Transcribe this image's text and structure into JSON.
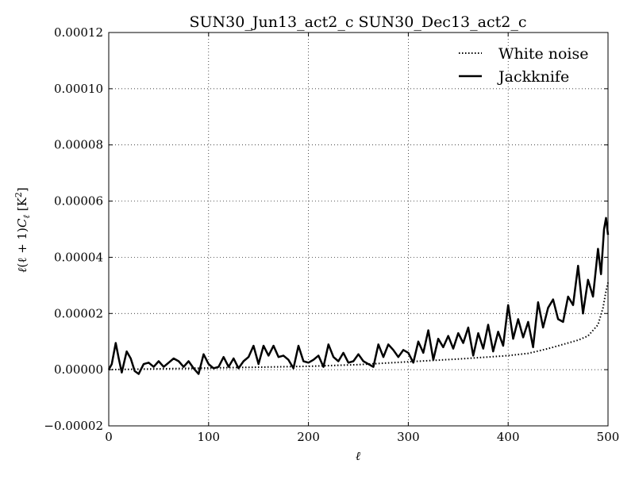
{
  "chart_data": {
    "type": "line",
    "title": "SUN30_Jun13_act2_c SUN30_Dec13_act2_c",
    "xlabel": "ℓ",
    "ylabel_parts": {
      "l": "ℓ",
      "mid": "(ℓ + 1)",
      "C": "C",
      "sub": "ℓ",
      "unit_open": "  [K",
      "sup": "2",
      "unit_close": "]"
    },
    "xlim": [
      0,
      500
    ],
    "ylim": [
      -2e-05,
      0.00012
    ],
    "grid": true,
    "grid_style": "dotted",
    "legend_position": "top-right",
    "x_ticks": [
      0,
      100,
      200,
      300,
      400,
      500
    ],
    "x_tick_labels": [
      "0",
      "100",
      "200",
      "300",
      "400",
      "500"
    ],
    "y_ticks": [
      -2e-05,
      0,
      2e-05,
      4e-05,
      6e-05,
      8e-05,
      0.0001,
      0.00012
    ],
    "y_tick_labels": [
      "−0.00002",
      "0.00000",
      "0.00002",
      "0.00004",
      "0.00006",
      "0.00008",
      "0.00010",
      "0.00012"
    ],
    "series": [
      {
        "name": "White noise",
        "style": "dotted",
        "color": "#000000",
        "x": [
          0,
          50,
          100,
          150,
          200,
          250,
          300,
          350,
          380,
          400,
          420,
          440,
          460,
          470,
          480,
          490,
          495,
          498,
          500
        ],
        "y": [
          0.0,
          3e-07,
          6e-07,
          9e-07,
          1.2e-06,
          1.8e-06,
          2.8e-06,
          3.8e-06,
          4.5e-06,
          5e-06,
          5.8e-06,
          7.5e-06,
          9.5e-06,
          1.05e-05,
          1.2e-05,
          1.6e-05,
          2.2e-05,
          2.8e-05,
          3.1e-05
        ]
      },
      {
        "name": "Jackknife",
        "style": "solid",
        "color": "#000000",
        "x": [
          0,
          3,
          7,
          10,
          13,
          18,
          22,
          26,
          30,
          35,
          40,
          45,
          50,
          55,
          60,
          65,
          70,
          75,
          80,
          85,
          90,
          95,
          100,
          105,
          110,
          115,
          120,
          125,
          130,
          135,
          140,
          145,
          150,
          155,
          160,
          165,
          170,
          175,
          180,
          185,
          190,
          195,
          200,
          205,
          210,
          215,
          220,
          225,
          230,
          235,
          240,
          245,
          250,
          255,
          260,
          265,
          270,
          275,
          280,
          285,
          290,
          295,
          300,
          305,
          310,
          315,
          320,
          325,
          330,
          335,
          340,
          345,
          350,
          355,
          360,
          365,
          370,
          375,
          380,
          385,
          390,
          395,
          400,
          405,
          410,
          415,
          420,
          425,
          430,
          435,
          440,
          445,
          450,
          455,
          460,
          465,
          470,
          475,
          480,
          485,
          490,
          493,
          496,
          498,
          500
        ],
        "y": [
          0.0,
          2e-06,
          9.5e-06,
          4e-06,
          -1e-06,
          6.5e-06,
          4e-06,
          -5e-07,
          -1.5e-06,
          2e-06,
          2.5e-06,
          1e-06,
          3e-06,
          1e-06,
          2.5e-06,
          4e-06,
          3e-06,
          1e-06,
          3e-06,
          5e-07,
          -1.5e-06,
          5.5e-06,
          2e-06,
          5e-07,
          1e-06,
          4.5e-06,
          1e-06,
          4e-06,
          5e-07,
          3e-06,
          4.5e-06,
          8.5e-06,
          2e-06,
          8.5e-06,
          5e-06,
          8.5e-06,
          4.5e-06,
          5e-06,
          3.5e-06,
          5e-07,
          8.5e-06,
          3e-06,
          2.5e-06,
          3.5e-06,
          5e-06,
          1e-06,
          9e-06,
          4.5e-06,
          3e-06,
          6e-06,
          2.5e-06,
          3e-06,
          5.5e-06,
          3e-06,
          2e-06,
          1e-06,
          9e-06,
          4.5e-06,
          9e-06,
          7e-06,
          4.5e-06,
          7e-06,
          6e-06,
          2.5e-06,
          1e-05,
          6e-06,
          1.4e-05,
          3.5e-06,
          1.1e-05,
          8e-06,
          1.2e-05,
          7.5e-06,
          1.3e-05,
          9.5e-06,
          1.5e-05,
          5e-06,
          1.3e-05,
          7.5e-06,
          1.6e-05,
          6.5e-06,
          1.35e-05,
          8.5e-06,
          2.3e-05,
          1.1e-05,
          1.8e-05,
          1.15e-05,
          1.7e-05,
          8e-06,
          2.4e-05,
          1.5e-05,
          2.2e-05,
          2.5e-05,
          1.8e-05,
          1.7e-05,
          2.6e-05,
          2.3e-05,
          3.7e-05,
          2e-05,
          3.2e-05,
          2.6e-05,
          4.3e-05,
          3.4e-05,
          5e-05,
          5.4e-05,
          4.8e-05
        ]
      }
    ]
  }
}
